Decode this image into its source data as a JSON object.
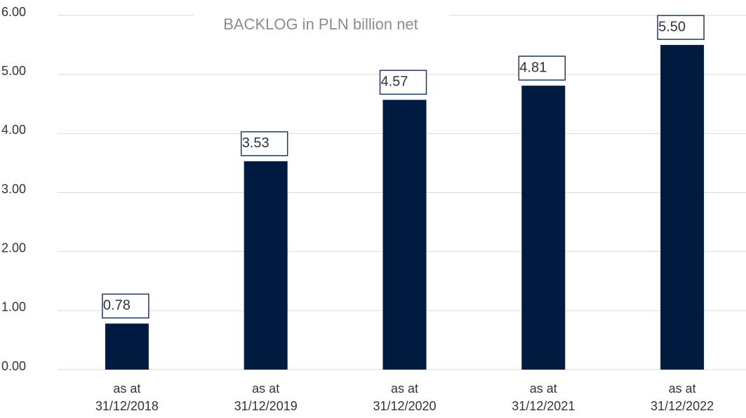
{
  "chart_data": {
    "type": "bar",
    "title": "BACKLOG in PLN billion net",
    "categories": [
      [
        "as at",
        "31/12/2018"
      ],
      [
        "as at",
        "31/12/2019"
      ],
      [
        "as at",
        "31/12/2020"
      ],
      [
        "as at",
        "31/12/2021"
      ],
      [
        "as at",
        "31/12/2022"
      ]
    ],
    "values": [
      0.78,
      3.53,
      4.57,
      4.81,
      5.5
    ],
    "value_labels": [
      "0.78",
      "3.53",
      "4.57",
      "4.81",
      "5.50"
    ],
    "color": "#001a40",
    "ylim": [
      0,
      6
    ],
    "yticks": [
      {
        "value": 0,
        "label": "0.00"
      },
      {
        "value": 1,
        "label": "1.00"
      },
      {
        "value": 2,
        "label": "2.00"
      },
      {
        "value": 3,
        "label": "3.00"
      },
      {
        "value": 4,
        "label": "4.00"
      },
      {
        "value": 5,
        "label": "5.00"
      },
      {
        "value": 6,
        "label": "6.00"
      }
    ],
    "grid": true
  }
}
